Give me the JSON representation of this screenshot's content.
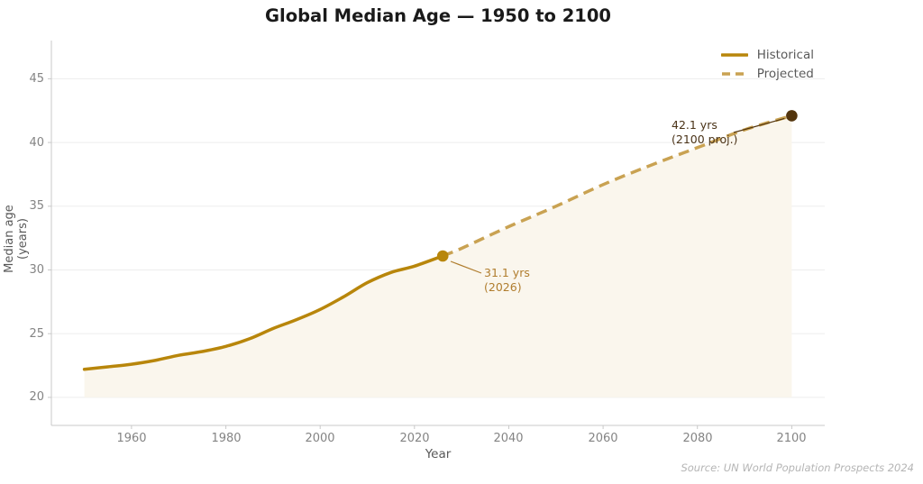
{
  "title": "Global Median Age — 1950 to 2100",
  "legend": [
    {
      "label": "Historical",
      "style": "solid"
    },
    {
      "label": "Projected",
      "style": "dashed"
    }
  ],
  "axes": {
    "x_label": "Year",
    "y_label": "Median age (years)"
  },
  "annotations": [
    {
      "line1": "31.1 yrs",
      "line2": "(2026)"
    },
    {
      "line1": "42.1 yrs",
      "line2": "(2100 proj.)"
    }
  ],
  "source": "Source: UN World Population Prospects 2024",
  "colors": {
    "historical": "#b8860b",
    "projected": "#c9a252",
    "marker_transition": "#b8860b",
    "marker_end": "#53350d",
    "area_fill": "#faf6ed",
    "grid": "#ededed",
    "spine": "#c9c9c9",
    "tick_text": "#848484",
    "annotation_2026": "#b07d2e",
    "annotation_2100": "#4a3318",
    "title_text": "#1a1a1a",
    "source_text": "#b5b5b5"
  },
  "chart_data": {
    "type": "line",
    "title": "Global Median Age — 1950 to 2100",
    "xlabel": "Year",
    "ylabel": "Median age (years)",
    "xlim": [
      1943,
      2107
    ],
    "ylim": [
      17.8,
      48
    ],
    "x_ticks": [
      1960,
      1980,
      2000,
      2020,
      2040,
      2060,
      2080,
      2100
    ],
    "y_ticks": [
      20,
      25,
      30,
      35,
      40,
      45
    ],
    "grid": "horizontal",
    "legend_position": "top-right",
    "area_fill_to": 20,
    "series": [
      {
        "name": "Historical",
        "style": "solid",
        "x": [
          1950,
          1955,
          1960,
          1965,
          1970,
          1975,
          1980,
          1985,
          1990,
          1995,
          2000,
          2005,
          2010,
          2015,
          2020,
          2026
        ],
        "y": [
          22.2,
          22.4,
          22.6,
          22.9,
          23.3,
          23.6,
          24.0,
          24.6,
          25.4,
          26.1,
          26.9,
          27.9,
          29.0,
          29.8,
          30.3,
          31.1
        ]
      },
      {
        "name": "Projected",
        "style": "dashed",
        "x": [
          2026,
          2030,
          2040,
          2050,
          2060,
          2070,
          2080,
          2090,
          2100
        ],
        "y": [
          31.1,
          31.7,
          33.4,
          35.0,
          36.7,
          38.2,
          39.6,
          41.0,
          42.1
        ]
      }
    ],
    "markers": [
      {
        "x": 2026,
        "y": 31.1,
        "key": "marker_transition"
      },
      {
        "x": 2100,
        "y": 42.1,
        "key": "marker_end"
      }
    ],
    "annotations": [
      {
        "x": 2026,
        "y": 31.1,
        "text": "31.1 yrs\n(2026)"
      },
      {
        "x": 2100,
        "y": 42.1,
        "text": "42.1 yrs\n(2100 proj.)"
      }
    ]
  }
}
